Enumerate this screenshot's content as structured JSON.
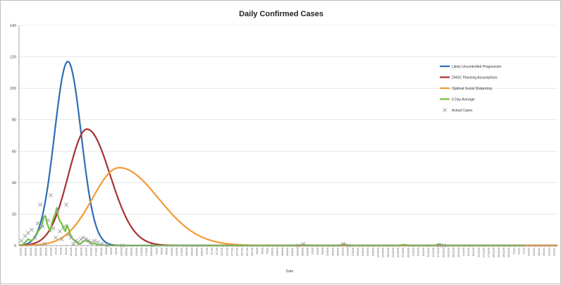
{
  "chart_data": {
    "type": "line",
    "title": "Daily Confirmed Cases",
    "xlabel": "Date",
    "ylabel": "",
    "ylim": [
      0,
      140
    ],
    "yticks": [
      0,
      20,
      40,
      60,
      80,
      100,
      120,
      140
    ],
    "grid": "horizontal",
    "legend_position": "right",
    "dates": [
      "13/3/20",
      "16/3/20",
      "19/3/20",
      "22/3/20",
      "25/3/20",
      "28/3/20",
      "31/3/20",
      "3/4/20",
      "6/4/20",
      "9/4/20",
      "12/4/20",
      "15/4/20",
      "18/4/20",
      "21/4/20",
      "24/4/20",
      "27/4/20",
      "30/4/20",
      "3/5/20",
      "6/5/20",
      "9/5/20",
      "12/5/20",
      "15/5/20",
      "18/5/20",
      "21/5/20",
      "24/5/20",
      "27/5/20",
      "30/5/20",
      "2/6/20",
      "5/6/20",
      "8/6/20",
      "11/6/20",
      "14/6/20",
      "17/6/20",
      "20/6/20",
      "23/6/20",
      "26/6/20",
      "29/6/20",
      "2/7/20",
      "5/7/20",
      "8/7/20",
      "11/7/20",
      "14/7/20",
      "17/7/20",
      "20/7/20",
      "23/7/20",
      "26/7/20",
      "29/7/20",
      "1/8/20",
      "4/8/20",
      "7/8/20",
      "10/8/20",
      "13/8/20",
      "16/8/20",
      "19/8/20",
      "22/8/20",
      "25/8/20",
      "28/8/20",
      "31/8/20",
      "3/9/20",
      "6/9/20",
      "9/9/20",
      "12/9/20",
      "15/9/20",
      "18/9/20",
      "21/9/20",
      "24/9/20",
      "27/9/20",
      "30/9/20",
      "3/10/20",
      "6/10/20",
      "9/10/20",
      "12/10/20",
      "15/10/20",
      "18/10/20",
      "21/10/20",
      "24/10/20",
      "27/10/20",
      "30/10/20",
      "2/11/20",
      "5/11/20",
      "8/11/20",
      "11/11/20",
      "14/11/20",
      "17/11/20",
      "20/11/20",
      "23/11/20",
      "26/11/20",
      "29/11/20",
      "2/12/20",
      "5/12/20",
      "8/12/20",
      "11/12/20",
      "14/12/20",
      "17/12/20",
      "20/12/20",
      "23/12/20",
      "26/12/20",
      "29/12/20",
      "1/1/21",
      "4/1/21",
      "7/1/21",
      "10/1/21",
      "13/1/21",
      "16/1/21",
      "19/1/21",
      "22/1/21",
      "25/1/21"
    ],
    "series": [
      {
        "name": "Likely Uncontrolled Progression",
        "color": "#2e6db4",
        "kind": "gaussian",
        "peak": 117,
        "peak_index": 9.2,
        "sigma": 2.65
      },
      {
        "name": "DHSC Planning Assumptions",
        "color": "#a83232",
        "kind": "gaussian",
        "peak": 74,
        "peak_index": 13,
        "sigma_left": 3.7,
        "sigma_right": 4.6
      },
      {
        "name": "Optimal Social Distancing",
        "color": "#f39a38",
        "kind": "gaussian",
        "peak": 49.5,
        "peak_index": 19.4,
        "sigma_left": 5.3,
        "sigma_right": 7.8
      },
      {
        "name": "5 Day Average",
        "color": "#74c043",
        "kind": "points",
        "points": [
          [
            0,
            0
          ],
          [
            0.7,
            2
          ],
          [
            1.3,
            4
          ],
          [
            2,
            3
          ],
          [
            2.7,
            5
          ],
          [
            3.3,
            9
          ],
          [
            4,
            12
          ],
          [
            4.4,
            18
          ],
          [
            4.7,
            19
          ],
          [
            5,
            15
          ],
          [
            5.3,
            12
          ],
          [
            5.7,
            9
          ],
          [
            6,
            14
          ],
          [
            6.3,
            17
          ],
          [
            6.7,
            20
          ],
          [
            7,
            24
          ],
          [
            7.3,
            18
          ],
          [
            7.7,
            15
          ],
          [
            8,
            14
          ],
          [
            8.3,
            11
          ],
          [
            8.7,
            9
          ],
          [
            9,
            13
          ],
          [
            9.3,
            11
          ],
          [
            9.7,
            7
          ],
          [
            10,
            5
          ],
          [
            10.5,
            3
          ],
          [
            11,
            2
          ],
          [
            11.3,
            1
          ],
          [
            11.7,
            1
          ],
          [
            12,
            2
          ],
          [
            12.5,
            3
          ],
          [
            13,
            3
          ],
          [
            13.5,
            2
          ],
          [
            14,
            1
          ],
          [
            14.5,
            1.5
          ],
          [
            15,
            0.5
          ],
          [
            16,
            0.3
          ],
          [
            18,
            0
          ],
          [
            20,
            0
          ],
          [
            40,
            0
          ],
          [
            50,
            0
          ],
          [
            55,
            0
          ],
          [
            56,
            0.5
          ],
          [
            57,
            0
          ],
          [
            63,
            0
          ],
          [
            64,
            1
          ],
          [
            65,
            0
          ],
          [
            75,
            0
          ],
          [
            76,
            0.5
          ],
          [
            77,
            0
          ],
          [
            82,
            0
          ],
          [
            83,
            1
          ],
          [
            84,
            0
          ],
          [
            100,
            0
          ]
        ]
      },
      {
        "name": "Actual Cases",
        "color": "#9a9a9a",
        "kind": "scatter",
        "points": [
          [
            0,
            3
          ],
          [
            0.7,
            6
          ],
          [
            1.3,
            8
          ],
          [
            2,
            10
          ],
          [
            2.6,
            5
          ],
          [
            3.2,
            14
          ],
          [
            3.7,
            26
          ],
          [
            4.2,
            12
          ],
          [
            4.6,
            1
          ],
          [
            5.3,
            16
          ],
          [
            5.8,
            32
          ],
          [
            6.3,
            11
          ],
          [
            6.8,
            5
          ],
          [
            7.2,
            22
          ],
          [
            7.6,
            9
          ],
          [
            8,
            4
          ],
          [
            8.4,
            12
          ],
          [
            8.9,
            26
          ],
          [
            9.3,
            7
          ],
          [
            9.8,
            5
          ],
          [
            10.3,
            1
          ],
          [
            10.8,
            3
          ],
          [
            11.3,
            2
          ],
          [
            11.8,
            4
          ],
          [
            12.2,
            5
          ],
          [
            12.8,
            4
          ],
          [
            13.3,
            3
          ],
          [
            13.8,
            2
          ],
          [
            14.5,
            3
          ],
          [
            15.2,
            2
          ],
          [
            16,
            1
          ],
          [
            17,
            0
          ],
          [
            20,
            0
          ],
          [
            26,
            0
          ],
          [
            55,
            0
          ],
          [
            56,
            1
          ],
          [
            64,
            1
          ],
          [
            65,
            0
          ],
          [
            83,
            0
          ],
          [
            84,
            0
          ]
        ]
      }
    ]
  }
}
